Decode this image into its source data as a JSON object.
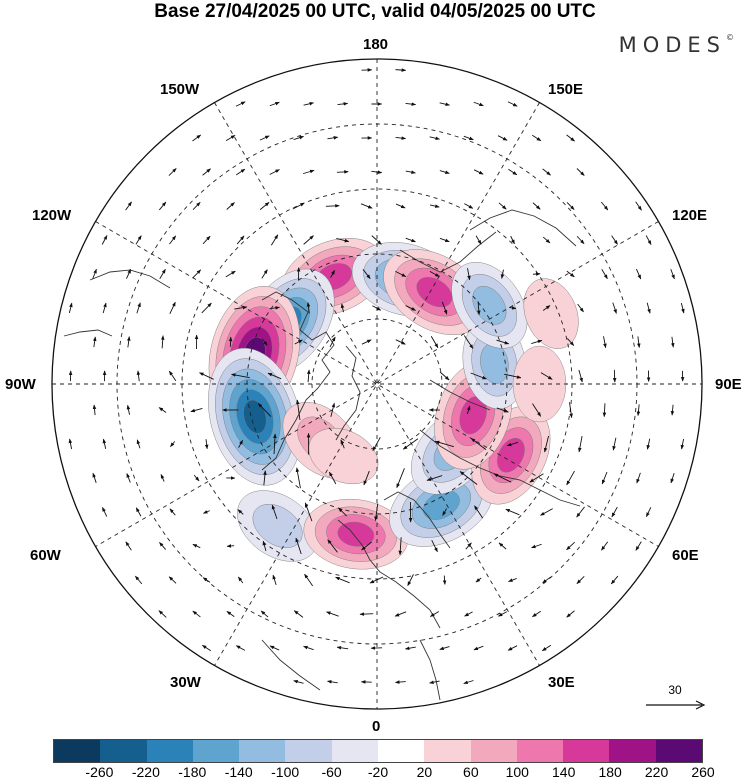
{
  "title": "Base 27/04/2025 00 UTC, valid 04/05/2025 00 UTC",
  "brand": "MODES",
  "brand_mark": "©",
  "longitude_labels": {
    "top": "180",
    "top_left": "150W",
    "top_right": "150E",
    "upper_left": "120W",
    "upper_right": "120E",
    "left": "90W",
    "right": "90E",
    "lower_left": "60W",
    "lower_right": "60E",
    "bottom_left": "30W",
    "bottom_right": "30E",
    "bottom": "0"
  },
  "vector_scale": {
    "value": "30"
  },
  "colorbar": {
    "ticks": [
      "-260",
      "-220",
      "-180",
      "-140",
      "-100",
      "-60",
      "-20",
      "20",
      "60",
      "100",
      "140",
      "180",
      "220",
      "260"
    ],
    "colors": [
      "#0c3a5e",
      "#155f8e",
      "#2a82b9",
      "#5fa4cf",
      "#92bde0",
      "#c3cfe8",
      "#e6e6f2",
      "#ffffff",
      "#f8d2d6",
      "#f3a9bd",
      "#ee78ae",
      "#d6399a",
      "#a01387",
      "#5b0a74"
    ]
  },
  "anomaly_centers": [
    {
      "lon": -158,
      "lat": 58,
      "value": 150
    },
    {
      "lon": 165,
      "lat": 60,
      "value": -150
    },
    {
      "lon": 148,
      "lat": 60,
      "value": 160
    },
    {
      "lon": -125,
      "lat": 60,
      "value": -180
    },
    {
      "lon": -104,
      "lat": 55,
      "value": 240
    },
    {
      "lon": -75,
      "lat": 55,
      "value": -250
    },
    {
      "lon": -45,
      "lat": 68,
      "value": 90
    },
    {
      "lon": -35,
      "lat": 42,
      "value": -90
    },
    {
      "lon": -8,
      "lat": 48,
      "value": 140
    },
    {
      "lon": 28,
      "lat": 52,
      "value": -160
    },
    {
      "lon": 48,
      "lat": 62,
      "value": -120
    },
    {
      "lon": 62,
      "lat": 48,
      "value": 140
    },
    {
      "lon": 72,
      "lat": 62,
      "value": 160
    },
    {
      "lon": 100,
      "lat": 57,
      "value": -100
    },
    {
      "lon": 125,
      "lat": 52,
      "value": -110
    },
    {
      "lon": 90,
      "lat": 45,
      "value": 50
    },
    {
      "lon": 112,
      "lat": 38,
      "value": 40
    },
    {
      "lon": -25,
      "lat": 68,
      "value": 40
    }
  ]
}
